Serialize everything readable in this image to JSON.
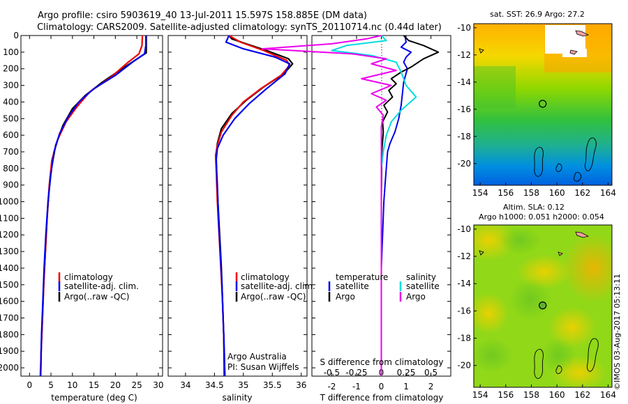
{
  "title_line1": "Argo profile: csiro 5903619_40 13-Jul-2011 15.597S 158.885E (DM data)",
  "title_line2": "Climatology: CARS2009. Satellite-adjusted climatology: synTS_20110714.nc (0.44d later)",
  "credit": "©IMOS 03-Aug-2017 05:13:11",
  "colors": {
    "climatology": "#ee0000",
    "satellite": "#0000ee",
    "argo": "#000000",
    "s_satellite": "#00dddd",
    "s_argo": "#ee00ee"
  },
  "legend": {
    "climatology": "climatology",
    "satellite": "satellite-adj. clim.",
    "argo": "Argo(..raw -QC)"
  },
  "diff_legend": {
    "temperature": "temperature",
    "salinity": "salinity",
    "satellite": "satellite",
    "argo": "Argo",
    "s_satellite": "satellite",
    "s_argo": "Argo"
  },
  "annotation": {
    "line1": "Argo Australia",
    "line2": "PI: Susan Wijffels"
  },
  "map1": {
    "title": "sat. SST: 26.9  Argo: 27.2"
  },
  "map2": {
    "title1": "Altim. SLA: 0.12",
    "title2": "Argo h1000: 0.051 h2000: 0.054"
  },
  "chart_data": [
    {
      "type": "line",
      "name": "temperature-profile",
      "xlabel": "temperature (deg C)",
      "xlim": [
        -2,
        31
      ],
      "ylim": [
        0,
        2050
      ],
      "xticks": [
        0,
        5,
        10,
        15,
        20,
        25,
        30
      ],
      "yticks": [
        0,
        100,
        200,
        300,
        400,
        500,
        600,
        700,
        800,
        900,
        1000,
        1100,
        1200,
        1300,
        1400,
        1500,
        1600,
        1700,
        1800,
        1900,
        2000
      ],
      "series": [
        {
          "name": "climatology",
          "points": [
            [
              26.3,
              0
            ],
            [
              26.2,
              60
            ],
            [
              25.5,
              110
            ],
            [
              23,
              160
            ],
            [
              19,
              250
            ],
            [
              14,
              340
            ],
            [
              11,
              430
            ],
            [
              8.5,
              520
            ],
            [
              6.5,
              630
            ],
            [
              5.2,
              750
            ],
            [
              4.6,
              900
            ],
            [
              4.2,
              1050
            ],
            [
              3.8,
              1250
            ],
            [
              3.4,
              1450
            ],
            [
              3.1,
              1650
            ],
            [
              2.8,
              1850
            ],
            [
              2.5,
              2050
            ]
          ]
        },
        {
          "name": "satellite-adj. clim.",
          "points": [
            [
              27.1,
              0
            ],
            [
              27.1,
              60
            ],
            [
              26.8,
              110
            ],
            [
              24,
              160
            ],
            [
              20,
              240
            ],
            [
              15,
              320
            ],
            [
              11.5,
              400
            ],
            [
              9,
              490
            ],
            [
              7,
              590
            ],
            [
              5.7,
              700
            ],
            [
              4.9,
              850
            ],
            [
              4.3,
              1000
            ],
            [
              3.8,
              1200
            ],
            [
              3.4,
              1400
            ],
            [
              3.1,
              1600
            ],
            [
              2.8,
              1800
            ],
            [
              2.6,
              2050
            ]
          ]
        },
        {
          "name": "Argo(..raw -QC)",
          "points": [
            [
              27.2,
              0
            ],
            [
              27.2,
              50
            ],
            [
              27.2,
              105
            ],
            [
              24.5,
              150
            ],
            [
              21,
              210
            ],
            [
              17,
              280
            ],
            [
              13,
              360
            ],
            [
              10,
              440
            ],
            [
              7.8,
              540
            ],
            [
              6.1,
              660
            ],
            [
              5.1,
              800
            ],
            [
              4.5,
              950
            ],
            [
              4.1,
              1100
            ],
            [
              3.7,
              1300
            ],
            [
              3.3,
              1500
            ],
            [
              3,
              1700
            ],
            [
              2.7,
              1900
            ],
            [
              2.6,
              2050
            ]
          ]
        }
      ]
    },
    {
      "type": "line",
      "name": "salinity-profile",
      "xlabel": "salinity",
      "xlim": [
        33.7,
        36.1
      ],
      "ylim": [
        0,
        2050
      ],
      "xticks": [
        34,
        34.5,
        35,
        35.5,
        36
      ],
      "series": [
        {
          "name": "climatology",
          "points": [
            [
              34.75,
              0
            ],
            [
              34.95,
              40
            ],
            [
              35.35,
              90
            ],
            [
              35.75,
              150
            ],
            [
              35.8,
              180
            ],
            [
              35.65,
              240
            ],
            [
              35.3,
              320
            ],
            [
              35.0,
              400
            ],
            [
              34.8,
              480
            ],
            [
              34.62,
              580
            ],
            [
              34.55,
              660
            ],
            [
              34.52,
              720
            ],
            [
              34.53,
              800
            ],
            [
              34.55,
              1000
            ],
            [
              34.58,
              1200
            ],
            [
              34.61,
              1400
            ],
            [
              34.64,
              1600
            ],
            [
              34.66,
              1800
            ],
            [
              34.68,
              2050
            ]
          ]
        },
        {
          "name": "satellite-adj. clim.",
          "points": [
            [
              34.75,
              0
            ],
            [
              34.7,
              40
            ],
            [
              35.0,
              80
            ],
            [
              35.55,
              130
            ],
            [
              35.8,
              170
            ],
            [
              35.72,
              230
            ],
            [
              35.4,
              320
            ],
            [
              35.1,
              410
            ],
            [
              34.85,
              500
            ],
            [
              34.65,
              600
            ],
            [
              34.55,
              680
            ],
            [
              34.53,
              750
            ],
            [
              34.55,
              900
            ],
            [
              34.57,
              1100
            ],
            [
              34.6,
              1300
            ],
            [
              34.63,
              1500
            ],
            [
              34.65,
              1700
            ],
            [
              34.67,
              1900
            ],
            [
              34.68,
              2050
            ]
          ]
        },
        {
          "name": "Argo(..raw -QC)",
          "points": [
            [
              34.75,
              0
            ],
            [
              34.8,
              20
            ],
            [
              35.05,
              50
            ],
            [
              35.4,
              90
            ],
            [
              35.78,
              140
            ],
            [
              35.85,
              170
            ],
            [
              35.7,
              230
            ],
            [
              35.35,
              310
            ],
            [
              35.05,
              390
            ],
            [
              34.8,
              470
            ],
            [
              34.62,
              560
            ],
            [
              34.55,
              650
            ],
            [
              34.53,
              720
            ],
            [
              34.54,
              850
            ],
            [
              34.56,
              1000
            ],
            [
              34.59,
              1200
            ],
            [
              34.62,
              1400
            ],
            [
              34.64,
              1600
            ],
            [
              34.66,
              1800
            ],
            [
              34.67,
              2050
            ]
          ]
        }
      ]
    },
    {
      "type": "line",
      "name": "difference-profile",
      "xlabel": "T difference from climatology",
      "xlabel_top": "S difference from climatology",
      "xlim": [
        -2.8,
        2.8
      ],
      "ylim": [
        0,
        2050
      ],
      "xticks": [
        -2,
        -1,
        0,
        1,
        2
      ],
      "xticks_top": [
        -0.5,
        -0.25,
        0,
        0.25,
        0.5
      ],
      "series": [
        {
          "name": "T satellite",
          "points": [
            [
              0.95,
              0
            ],
            [
              1.0,
              40
            ],
            [
              0.8,
              70
            ],
            [
              1.2,
              100
            ],
            [
              1.0,
              130
            ],
            [
              0.9,
              160
            ],
            [
              1.05,
              200
            ],
            [
              0.9,
              280
            ],
            [
              0.85,
              350
            ],
            [
              0.8,
              420
            ],
            [
              0.7,
              500
            ],
            [
              0.55,
              580
            ],
            [
              0.35,
              650
            ],
            [
              0.25,
              700
            ],
            [
              0.2,
              800
            ],
            [
              0.15,
              900
            ],
            [
              0.1,
              1000
            ],
            [
              0.05,
              1200
            ],
            [
              0,
              1400
            ],
            [
              0,
              2050
            ]
          ]
        },
        {
          "name": "T Argo",
          "points": [
            [
              0.9,
              0
            ],
            [
              1.1,
              30
            ],
            [
              1.7,
              60
            ],
            [
              2.3,
              100
            ],
            [
              1.7,
              140
            ],
            [
              1.2,
              190
            ],
            [
              0.8,
              220
            ],
            [
              0.4,
              260
            ],
            [
              0.6,
              290
            ],
            [
              0.3,
              330
            ],
            [
              0.45,
              370
            ],
            [
              0.1,
              420
            ],
            [
              0.25,
              460
            ],
            [
              0.05,
              520
            ],
            [
              0.08,
              580
            ],
            [
              0.02,
              700
            ],
            [
              0,
              1000
            ],
            [
              0,
              2050
            ]
          ]
        },
        {
          "name": "S satellite",
          "points": [
            [
              0,
              0
            ],
            [
              0.05,
              30
            ],
            [
              -0.35,
              60
            ],
            [
              -0.5,
              90
            ],
            [
              -0.1,
              120
            ],
            [
              0.15,
              160
            ],
            [
              0.2,
              220
            ],
            [
              0.25,
              300
            ],
            [
              0.35,
              370
            ],
            [
              0.2,
              450
            ],
            [
              0.1,
              520
            ],
            [
              0.05,
              600
            ],
            [
              0.02,
              700
            ],
            [
              0,
              800
            ],
            [
              0,
              2050
            ]
          ]
        },
        {
          "name": "S Argo",
          "points": [
            [
              0,
              0
            ],
            [
              -0.15,
              20
            ],
            [
              -0.5,
              50
            ],
            [
              -1.2,
              80
            ],
            [
              -0.3,
              110
            ],
            [
              0.05,
              140
            ],
            [
              -0.1,
              170
            ],
            [
              0.15,
              210
            ],
            [
              -0.2,
              260
            ],
            [
              0.1,
              300
            ],
            [
              -0.1,
              350
            ],
            [
              0.05,
              390
            ],
            [
              -0.05,
              430
            ],
            [
              0.02,
              480
            ],
            [
              0,
              550
            ],
            [
              0,
              2050
            ]
          ]
        }
      ]
    },
    {
      "type": "heatmap",
      "name": "sst-map",
      "title": "sat. SST: 26.9  Argo: 27.2",
      "xlim": [
        153.5,
        164.3
      ],
      "ylim": [
        -21.6,
        -9.7
      ],
      "xticks": [
        154,
        156,
        158,
        160,
        162,
        164
      ],
      "yticks": [
        -10,
        -12,
        -14,
        -16,
        -18,
        -20
      ],
      "argo_position": {
        "lon": 158.885,
        "lat": -15.597
      }
    },
    {
      "type": "heatmap",
      "name": "sla-map",
      "title": "Altim. SLA: 0.12",
      "xlim": [
        153.5,
        164.3
      ],
      "ylim": [
        -21.6,
        -9.7
      ],
      "xticks": [
        154,
        156,
        158,
        160,
        162,
        164
      ],
      "yticks": [
        -10,
        -12,
        -14,
        -16,
        -18,
        -20
      ],
      "argo_position": {
        "lon": 158.885,
        "lat": -15.597
      }
    }
  ]
}
